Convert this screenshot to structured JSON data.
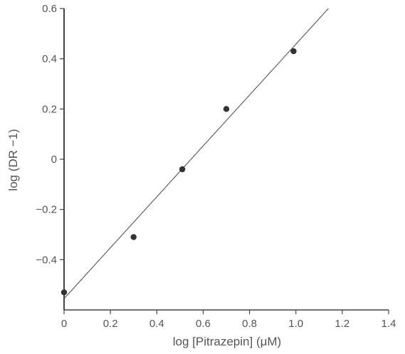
{
  "chart_data": {
    "type": "scatter",
    "title": "",
    "xlabel": "log [Pitrazepin] (μM)",
    "ylabel": "log (DR −1)",
    "xlim": [
      0,
      1.4
    ],
    "ylim": [
      -0.6,
      0.6
    ],
    "x_ticks": [
      0,
      0.2,
      0.4,
      0.6,
      0.8,
      1.0,
      1.2,
      1.4
    ],
    "x_tick_labels": [
      "0",
      "0.2",
      "0.4",
      "0.6",
      "0.8",
      "1.0",
      "1.2",
      "1.4"
    ],
    "y_ticks": [
      -0.4,
      -0.2,
      0,
      0.2,
      0.4,
      0.6
    ],
    "y_tick_labels": [
      "−0.4",
      "−0.2",
      "0",
      "0.2",
      "0.4",
      "0.6"
    ],
    "grid": false,
    "legend": "none",
    "series": [
      {
        "points": [
          {
            "x": 0.0,
            "y": -0.53
          },
          {
            "x": 0.3,
            "y": -0.31
          },
          {
            "x": 0.51,
            "y": -0.04
          },
          {
            "x": 0.7,
            "y": 0.2
          },
          {
            "x": 0.99,
            "y": 0.43
          }
        ]
      }
    ],
    "fit_line": {
      "x1": 0.0,
      "y1": -0.555,
      "x2": 1.14,
      "y2": 0.6
    },
    "colors": {
      "marker": "#333333",
      "line": "#555555",
      "axis": "#444444",
      "text": "#555555"
    }
  }
}
